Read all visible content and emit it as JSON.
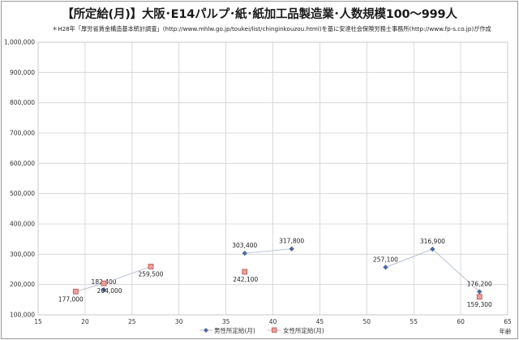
{
  "title": "【所定給(月)】大阪･E14パルプ･紙･紙加工品製造業･人数規模100～999人",
  "subtitle": "＊H28年「厚労省賃金構造基本統計調査」(http://www.mhlw.go.jp/toukei/list/chinginkouzou.html)を基に安達社会保険労務士事務所(http://www.fp-s.co.jp)が作成",
  "chart_data": {
    "type": "line",
    "xlabel": "年齢",
    "ylabel": "",
    "xlim": [
      15,
      65
    ],
    "ylim": [
      100000,
      1000000
    ],
    "xticks": [
      "15",
      "20",
      "25",
      "30",
      "35",
      "40",
      "45",
      "50",
      "55",
      "60",
      "65"
    ],
    "yticks": [
      "100,000",
      "200,000",
      "300,000",
      "400,000",
      "500,000",
      "600,000",
      "700,000",
      "800,000",
      "900,000",
      "1,000,000"
    ],
    "grid": true,
    "legend_position": "bottom",
    "series": [
      {
        "name": "男性所定給(月)",
        "color": "#4f6a9a",
        "marker": "diamond",
        "segments": [
          [
            {
              "x": 22,
              "y": 182400,
              "label": "182,400"
            },
            {
              "x": 22,
              "y": 182400,
              "label": ""
            }
          ],
          [
            {
              "x": 37,
              "y": 303400,
              "label": "303,400"
            },
            {
              "x": 42,
              "y": 317800,
              "label": "317,800"
            }
          ],
          [
            {
              "x": 52,
              "y": 257100,
              "label": "257,100"
            },
            {
              "x": 57,
              "y": 316900,
              "label": "316,900"
            },
            {
              "x": 62,
              "y": 176200,
              "label": "176,200"
            }
          ]
        ]
      },
      {
        "name": "女性所定給(月)",
        "color": "#c0504d",
        "marker": "square",
        "segments": [
          [
            {
              "x": 19,
              "y": 177000,
              "label": "177,000"
            },
            {
              "x": 22,
              "y": 204000,
              "label": "204,000"
            },
            {
              "x": 27,
              "y": 259500,
              "label": "259,500"
            }
          ],
          [
            {
              "x": 37,
              "y": 242100,
              "label": "242,100"
            }
          ],
          [
            {
              "x": 62,
              "y": 159300,
              "label": "159,300"
            }
          ]
        ]
      }
    ]
  }
}
